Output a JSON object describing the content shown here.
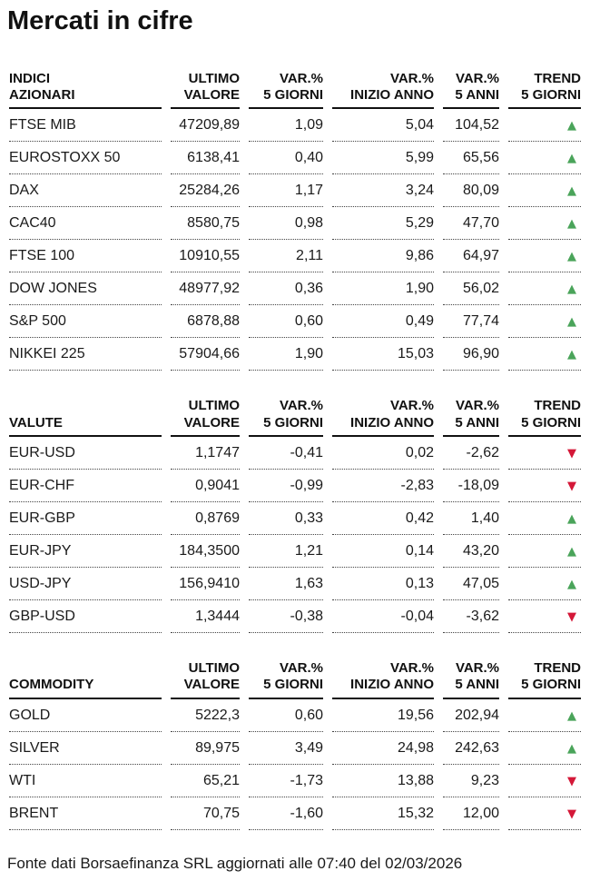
{
  "page_title": "Mercati in cifre",
  "footer": "Fonte dati Borsaefinanza SRL aggiornati alle 07:40 del 02/03/2026",
  "colors": {
    "trend_up": "#4aa45a",
    "trend_down": "#d41838"
  },
  "trend_glyphs": {
    "up": "▲",
    "down": "▼"
  },
  "column_header_lines": [
    [
      "ULTIMO",
      "VALORE"
    ],
    [
      "VAR.%",
      "5 GIORNI"
    ],
    [
      "VAR.%",
      "INIZIO ANNO"
    ],
    [
      "VAR.%",
      "5 ANNI"
    ],
    [
      "TREND",
      "5 GIORNI"
    ]
  ],
  "chart_data": [
    {
      "type": "table",
      "section_label_lines": [
        "INDICI",
        "AZIONARI"
      ],
      "columns": [
        "INDICI AZIONARI",
        "ULTIMO VALORE",
        "VAR.% 5 GIORNI",
        "VAR.% INIZIO ANNO",
        "VAR.% 5 ANNI",
        "TREND 5 GIORNI"
      ],
      "rows": [
        {
          "name": "FTSE MIB",
          "values": [
            "47209,89",
            "1,09",
            "5,04",
            "104,52"
          ],
          "trend": "up"
        },
        {
          "name": "EUROSTOXX 50",
          "values": [
            "6138,41",
            "0,40",
            "5,99",
            "65,56"
          ],
          "trend": "up"
        },
        {
          "name": "DAX",
          "values": [
            "25284,26",
            "1,17",
            "3,24",
            "80,09"
          ],
          "trend": "up"
        },
        {
          "name": "CAC40",
          "values": [
            "8580,75",
            "0,98",
            "5,29",
            "47,70"
          ],
          "trend": "up"
        },
        {
          "name": "FTSE 100",
          "values": [
            "10910,55",
            "2,11",
            "9,86",
            "64,97"
          ],
          "trend": "up"
        },
        {
          "name": "DOW JONES",
          "values": [
            "48977,92",
            "0,36",
            "1,90",
            "56,02"
          ],
          "trend": "up"
        },
        {
          "name": "S&P 500",
          "values": [
            "6878,88",
            "0,60",
            "0,49",
            "77,74"
          ],
          "trend": "up"
        },
        {
          "name": "NIKKEI 225",
          "values": [
            "57904,66",
            "1,90",
            "15,03",
            "96,90"
          ],
          "trend": "up"
        }
      ]
    },
    {
      "type": "table",
      "section_label_lines": [
        "",
        "VALUTE"
      ],
      "columns": [
        "VALUTE",
        "ULTIMO VALORE",
        "VAR.% 5 GIORNI",
        "VAR.% INIZIO ANNO",
        "VAR.% 5 ANNI",
        "TREND 5 GIORNI"
      ],
      "rows": [
        {
          "name": "EUR-USD",
          "values": [
            "1,1747",
            "-0,41",
            "0,02",
            "-2,62"
          ],
          "trend": "down"
        },
        {
          "name": "EUR-CHF",
          "values": [
            "0,9041",
            "-0,99",
            "-2,83",
            "-18,09"
          ],
          "trend": "down"
        },
        {
          "name": "EUR-GBP",
          "values": [
            "0,8769",
            "0,33",
            "0,42",
            "1,40"
          ],
          "trend": "up"
        },
        {
          "name": "EUR-JPY",
          "values": [
            "184,3500",
            "1,21",
            "0,14",
            "43,20"
          ],
          "trend": "up"
        },
        {
          "name": "USD-JPY",
          "values": [
            "156,9410",
            "1,63",
            "0,13",
            "47,05"
          ],
          "trend": "up"
        },
        {
          "name": "GBP-USD",
          "values": [
            "1,3444",
            "-0,38",
            "-0,04",
            "-3,62"
          ],
          "trend": "down"
        }
      ]
    },
    {
      "type": "table",
      "section_label_lines": [
        "",
        "COMMODITY"
      ],
      "columns": [
        "COMMODITY",
        "ULTIMO VALORE",
        "VAR.% 5 GIORNI",
        "VAR.% INIZIO ANNO",
        "VAR.% 5 ANNI",
        "TREND 5 GIORNI"
      ],
      "rows": [
        {
          "name": "GOLD",
          "values": [
            "5222,3",
            "0,60",
            "19,56",
            "202,94"
          ],
          "trend": "up"
        },
        {
          "name": "SILVER",
          "values": [
            "89,975",
            "3,49",
            "24,98",
            "242,63"
          ],
          "trend": "up"
        },
        {
          "name": "WTI",
          "values": [
            "65,21",
            "-1,73",
            "13,88",
            "9,23"
          ],
          "trend": "down"
        },
        {
          "name": "BRENT",
          "values": [
            "70,75",
            "-1,60",
            "15,32",
            "12,00"
          ],
          "trend": "down"
        }
      ]
    }
  ]
}
